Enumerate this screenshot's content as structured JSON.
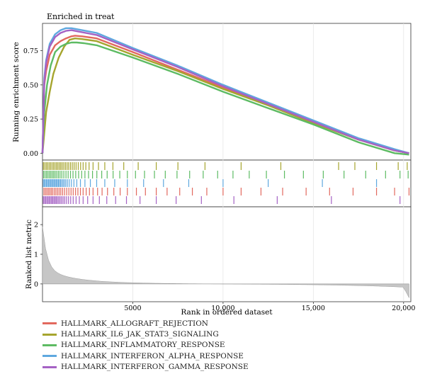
{
  "chart_data": {
    "type": "line",
    "title": "Enriched in treat",
    "top_panel": {
      "ylabel": "Running enrichment score",
      "yticks": [
        "0.00",
        "0.25",
        "0.50",
        "0.75"
      ],
      "ylim": [
        -0.05,
        0.95
      ]
    },
    "bottom_panel": {
      "ylabel": "Ranked list metric",
      "yticks": [
        "0",
        "1",
        "2"
      ],
      "ylim": [
        -0.6,
        2.6
      ]
    },
    "xlabel": "Rank in ordered dataset",
    "xticks": [
      "5000",
      "10,000",
      "15,000",
      "20,000"
    ],
    "xlim": [
      0,
      20400
    ],
    "grid": "vertical",
    "legend_position": "bottom-left",
    "series": [
      {
        "name": "HALLMARK_ALLOGRAFT_REJECTION",
        "color": "#E2695E",
        "x": [
          0,
          100,
          200,
          400,
          700,
          1000,
          1300,
          1600,
          1800,
          2200,
          3000,
          5000,
          7500,
          10000,
          12500,
          15000,
          17500,
          19500,
          20300
        ],
        "values": [
          0,
          0.5,
          0.6,
          0.72,
          0.79,
          0.82,
          0.84,
          0.855,
          0.86,
          0.855,
          0.84,
          0.74,
          0.61,
          0.48,
          0.36,
          0.23,
          0.1,
          0.02,
          0.0
        ],
        "hits": [
          80,
          160,
          240,
          320,
          400,
          480,
          560,
          650,
          740,
          830,
          920,
          1010,
          1110,
          1220,
          1340,
          1460,
          1580,
          1700,
          1830,
          1960,
          2100,
          2250,
          2420,
          2600,
          2800,
          3050,
          3300,
          3600,
          3950,
          4300,
          4700,
          5200,
          5700,
          6300,
          6900,
          7600,
          8300,
          9100,
          10000,
          11000,
          12100,
          13300,
          14600,
          15900,
          17200,
          18500,
          19500,
          20300
        ]
      },
      {
        "name": "HALLMARK_IL6_JAK_STAT3_SIGNALING",
        "color": "#A6A52E",
        "x": [
          0,
          200,
          400,
          600,
          900,
          1200,
          1500,
          1800,
          2200,
          3000,
          5000,
          7500,
          10000,
          12500,
          15000,
          17500,
          19500,
          20300
        ],
        "values": [
          0,
          0.3,
          0.45,
          0.58,
          0.7,
          0.78,
          0.83,
          0.84,
          0.835,
          0.82,
          0.72,
          0.6,
          0.47,
          0.35,
          0.22,
          0.1,
          0.02,
          0.0
        ],
        "hits": [
          50,
          130,
          210,
          290,
          370,
          450,
          530,
          610,
          690,
          770,
          850,
          930,
          1010,
          1090,
          1180,
          1270,
          1360,
          1450,
          1550,
          1650,
          1750,
          1860,
          1980,
          2110,
          2250,
          2400,
          2580,
          2800,
          3100,
          3450,
          3900,
          4500,
          5300,
          6300,
          7500,
          9000,
          11000,
          13200,
          16400,
          17300,
          18500,
          19700,
          20200
        ]
      },
      {
        "name": "HALLMARK_INFLAMMATORY_RESPONSE",
        "color": "#5DBB63",
        "x": [
          0,
          100,
          250,
          450,
          700,
          1000,
          1300,
          1600,
          1900,
          2300,
          3000,
          5000,
          7500,
          10000,
          12500,
          15000,
          17500,
          19500,
          20300
        ],
        "values": [
          0,
          0.3,
          0.5,
          0.64,
          0.74,
          0.78,
          0.8,
          0.81,
          0.81,
          0.805,
          0.79,
          0.7,
          0.58,
          0.45,
          0.33,
          0.21,
          0.08,
          0.0,
          -0.01
        ],
        "hits": [
          60,
          140,
          220,
          300,
          380,
          460,
          540,
          620,
          700,
          790,
          880,
          970,
          1070,
          1180,
          1300,
          1420,
          1550,
          1690,
          1840,
          2000,
          2170,
          2350,
          2550,
          2770,
          3010,
          3280,
          3580,
          3910,
          4280,
          4700,
          5150,
          5650,
          6200,
          6800,
          7450,
          8150,
          8900,
          9700,
          10550,
          11450,
          12400,
          13400,
          14450,
          15550,
          16700,
          17900,
          19000,
          19800,
          20250
        ]
      },
      {
        "name": "HALLMARK_INTERFERON_ALPHA_RESPONSE",
        "color": "#5FA8DF",
        "x": [
          0,
          100,
          200,
          400,
          700,
          1000,
          1300,
          1600,
          2000,
          3000,
          5000,
          7500,
          10000,
          12500,
          15000,
          17500,
          19500,
          20300
        ],
        "values": [
          0,
          0.55,
          0.68,
          0.8,
          0.87,
          0.9,
          0.915,
          0.915,
          0.905,
          0.88,
          0.77,
          0.64,
          0.5,
          0.37,
          0.24,
          0.11,
          0.03,
          0.0
        ],
        "hits": [
          40,
          100,
          160,
          220,
          280,
          340,
          400,
          460,
          520,
          580,
          640,
          700,
          760,
          820,
          880,
          940,
          1000,
          1070,
          1140,
          1210,
          1290,
          1380,
          1480,
          1600,
          1740,
          1900,
          2100,
          2350,
          2650,
          3000,
          3450,
          4000,
          4700,
          5600,
          6700,
          8100,
          10000,
          12500,
          15500,
          18500
        ]
      },
      {
        "name": "HALLMARK_INTERFERON_GAMMA_RESPONSE",
        "color": "#A562C4",
        "x": [
          0,
          100,
          200,
          400,
          700,
          1000,
          1300,
          1600,
          2000,
          3000,
          5000,
          7500,
          10000,
          12500,
          15000,
          17500,
          19500,
          20300
        ],
        "values": [
          0,
          0.52,
          0.66,
          0.78,
          0.85,
          0.88,
          0.895,
          0.9,
          0.89,
          0.865,
          0.76,
          0.63,
          0.49,
          0.36,
          0.23,
          0.1,
          0.02,
          0.0
        ],
        "hits": [
          45,
          110,
          175,
          240,
          305,
          370,
          435,
          500,
          565,
          630,
          695,
          760,
          830,
          900,
          975,
          1055,
          1140,
          1230,
          1330,
          1440,
          1560,
          1700,
          1860,
          2040,
          2250,
          2500,
          2800,
          3150,
          3560,
          4050,
          4650,
          5400,
          6300,
          7400,
          8800,
          10600,
          13000,
          16000,
          19800
        ]
      }
    ]
  }
}
